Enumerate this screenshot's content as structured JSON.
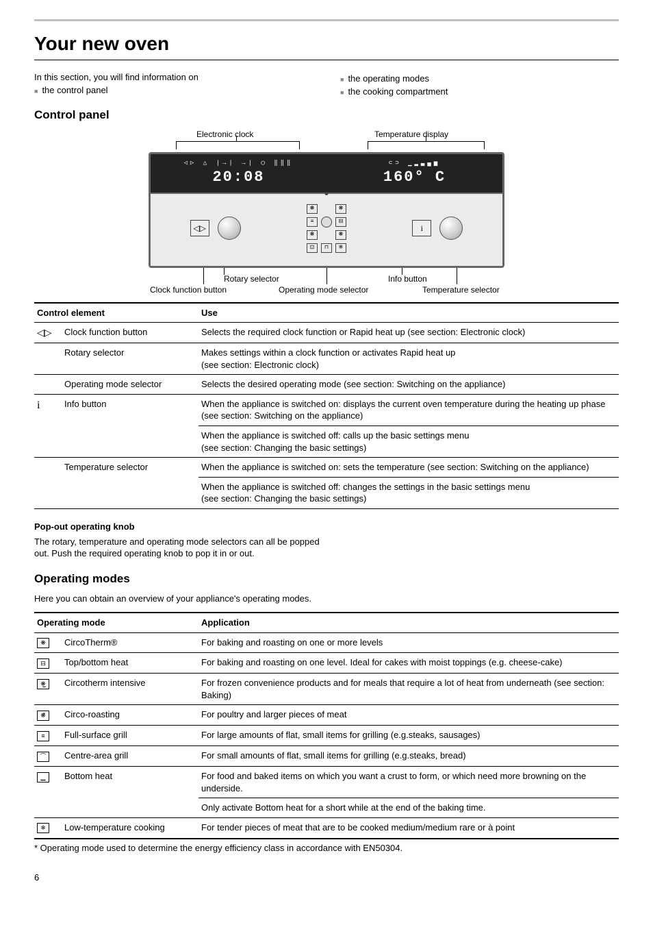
{
  "page": {
    "title": "Your new oven",
    "intro": "In this section, you will find information on",
    "bullets_left": [
      "the control panel"
    ],
    "bullets_right": [
      "the operating modes",
      "the cooking compartment"
    ],
    "page_number": "6"
  },
  "control_panel_section": {
    "heading": "Control panel",
    "labels": {
      "electronic_clock": "Electronic clock",
      "temperature_display": "Temperature display",
      "clock_function_button": "Clock function button",
      "rotary_selector": "Rotary selector",
      "operating_mode_selector": "Operating mode selector",
      "info_button": "Info button",
      "temperature_selector": "Temperature selector"
    },
    "display": {
      "clock_icons_row": "◁▷ △ |→| →| ◯ ‖‖‖",
      "clock_value": "20:08",
      "temp_icons_row": "⊂⊃  ▁▂▃▄▅",
      "temp_value": "160° C"
    }
  },
  "control_table": {
    "headers": [
      "Control element",
      "Use"
    ],
    "rows": [
      {
        "icon": "◁▷",
        "name": "Clock function button",
        "desc": "Selects the required clock function or Rapid heat up (see section: Electronic clock)"
      },
      {
        "icon": "",
        "name": "Rotary selector",
        "desc": "Makes settings within a clock function or activates Rapid heat up\n(see section: Electronic clock)"
      },
      {
        "icon": "",
        "name": "Operating mode selector",
        "desc": "Selects the desired operating mode (see section: Switching on the appliance)"
      },
      {
        "icon": "i",
        "name": "Info button",
        "desc": "When the appliance is switched on: displays the current oven temperature during the heating up phase (see section: Switching on the appliance)",
        "sub": "When the appliance is switched off: calls up the basic settings menu\n(see section: Changing the basic settings)"
      },
      {
        "icon": "",
        "name": "Temperature selector",
        "desc": "When the appliance is switched on: sets the temperature (see section: Switching on the appliance)",
        "sub": "When the appliance is switched off: changes the settings in the basic settings menu\n(see section: Changing the basic settings)"
      }
    ]
  },
  "popout": {
    "heading": "Pop-out operating knob",
    "text": "The rotary, temperature and operating mode selectors can all be popped out. Push the required operating knob to pop it in or out."
  },
  "operating_modes_section": {
    "heading": "Operating modes",
    "intro": "Here you can obtain an overview of your appliance's operating modes."
  },
  "modes_table": {
    "headers": [
      "Operating mode",
      "Application"
    ],
    "rows": [
      {
        "icon": "❋",
        "name": "CircoTherm®",
        "desc": "For baking and roasting on one or more levels"
      },
      {
        "icon": "⊟",
        "name": "Top/bottom heat",
        "desc": "For baking and roasting on one level. Ideal for cakes with moist toppings (e.g. cheese-cake)"
      },
      {
        "icon": "❋̲",
        "name": "Circotherm intensive",
        "desc": "For frozen convenience products and for meals that require a lot of heat from underneath (see section: Baking)"
      },
      {
        "icon": "❋̄",
        "name": "Circo-roasting",
        "desc": "For poultry and larger pieces of meat"
      },
      {
        "icon": "≡",
        "name": "Full-surface grill",
        "desc": "For large amounts of flat, small items for grilling (e.g.steaks, sausages)"
      },
      {
        "icon": "⌒",
        "name": "Centre-area grill",
        "desc": "For small amounts of flat, small items for grilling (e.g.steaks, bread)"
      },
      {
        "icon": "▁",
        "name": "Bottom heat",
        "desc": "For food and baked items on which you want a crust to form, or which need more browning on the underside.",
        "sub": "Only activate Bottom heat for a short while at the end of the baking time."
      },
      {
        "icon": "❄",
        "name": "Low-temperature cooking",
        "desc": "For tender pieces of meat that are to be cooked medium/medium rare or à point"
      }
    ],
    "footnote": "* Operating mode used to determine the energy efficiency class in accordance with EN50304."
  },
  "colors": {
    "rule_gray": "#bfbfbf",
    "panel_dark": "#222222",
    "panel_light": "#ebebeb",
    "text": "#000000"
  }
}
